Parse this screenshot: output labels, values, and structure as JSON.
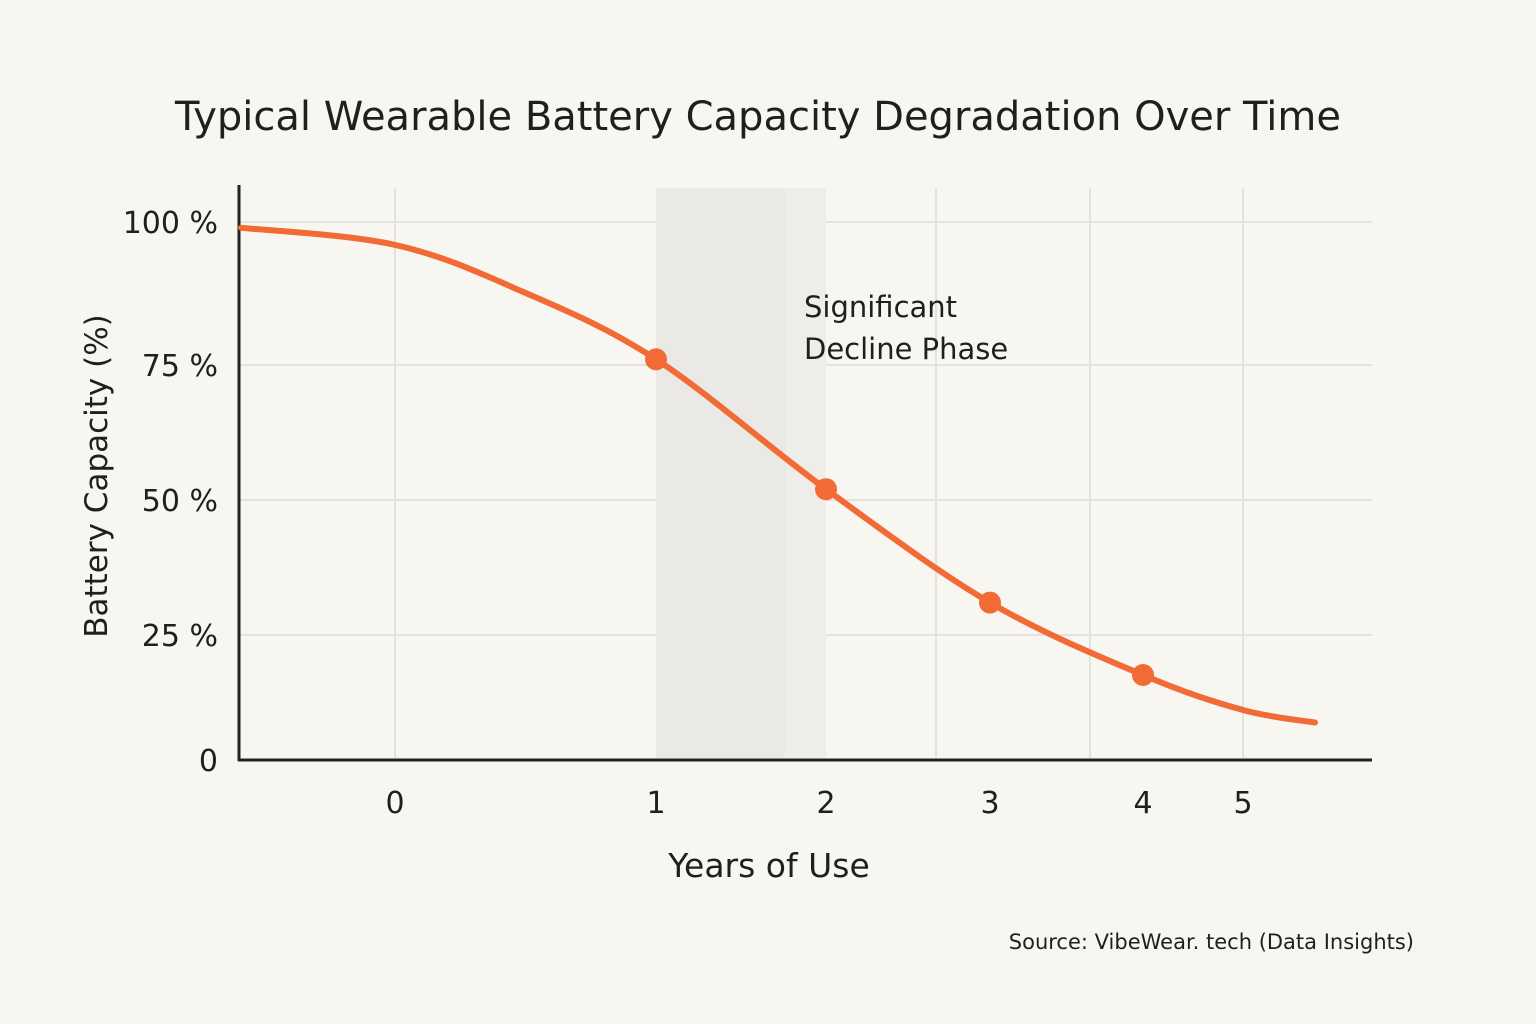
{
  "chart_data": {
    "type": "line",
    "title": "Typical Wearable Battery Capacity Degradation Over Time",
    "xlabel": "Years of Use",
    "ylabel": "Battery Capacity (%)",
    "x_ticks": [
      0,
      1,
      2,
      3,
      4,
      5
    ],
    "x_tick_labels": [
      "0",
      "1",
      "2",
      "3",
      "4",
      "5"
    ],
    "y_ticks": [
      0,
      25,
      50,
      75,
      100
    ],
    "y_tick_labels": [
      "0",
      "25 %",
      "50 %",
      "75 %",
      "100 %"
    ],
    "ylim": [
      0,
      100
    ],
    "grid": true,
    "line_color": "#f26a35",
    "curve": [
      {
        "x": -0.59,
        "y": 99
      },
      {
        "x": 0,
        "y": 96
      },
      {
        "x": 0.48,
        "y": 88
      },
      {
        "x": 1,
        "y": 76
      },
      {
        "x": 2,
        "y": 52
      },
      {
        "x": 3,
        "y": 31
      },
      {
        "x": 4,
        "y": 17
      },
      {
        "x": 5,
        "y": 10
      },
      {
        "x": 5.72,
        "y": 7.5
      }
    ],
    "markers": [
      {
        "x": 1,
        "y": 76
      },
      {
        "x": 2,
        "y": 52
      },
      {
        "x": 3,
        "y": 31
      },
      {
        "x": 4,
        "y": 17
      }
    ],
    "shaded_region": {
      "x_start": 1,
      "x_end": 2,
      "label": "Significant Decline Phase",
      "label_lines": [
        "Significant",
        "Decline Phase"
      ]
    },
    "source": "Source: VibeWear. tech (Data Insights)"
  }
}
